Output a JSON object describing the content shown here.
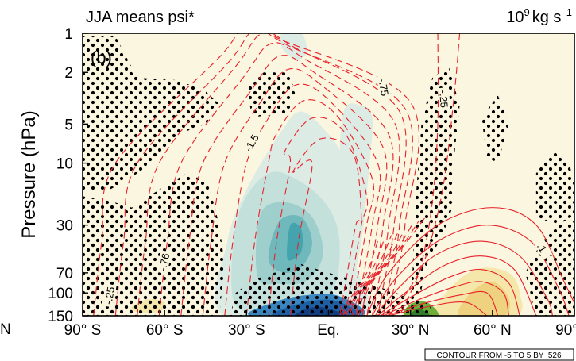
{
  "chart_data": {
    "type": "contour",
    "title_left": "JJA means psi*",
    "title_right_base": "10",
    "title_right_exp": "9",
    "title_right_unit": "kg s",
    "title_right_unit_exp": "-1",
    "panel_label": "(b)",
    "ylabel": "Pressure (hPa)",
    "y_scale": "log",
    "y_inverted": true,
    "ylim": [
      150,
      1
    ],
    "xlim": [
      -90,
      90
    ],
    "x_ticks": [
      {
        "value": -90,
        "label": "90° S"
      },
      {
        "value": -60,
        "label": "60° S"
      },
      {
        "value": -30,
        "label": "30° S"
      },
      {
        "value": 0,
        "label": "Eq."
      },
      {
        "value": 30,
        "label": "30° N"
      },
      {
        "value": 60,
        "label": "60° N"
      },
      {
        "value": 90,
        "label": "90° N"
      }
    ],
    "y_ticks": [
      {
        "value": 1,
        "label": "1"
      },
      {
        "value": 2,
        "label": "2"
      },
      {
        "value": 5,
        "label": "5"
      },
      {
        "value": 10,
        "label": "10"
      },
      {
        "value": 30,
        "label": "30"
      },
      {
        "value": 70,
        "label": "70"
      },
      {
        "value": 100,
        "label": "100"
      },
      {
        "value": 150,
        "label": "150"
      }
    ],
    "left_edge_label": "N",
    "contour_note": "CONTOUR FROM -5 TO 5 BY .526",
    "contour_labels": [
      {
        "text": "-.75",
        "lat": 20,
        "p": 2.6,
        "rot": 80
      },
      {
        "text": "-.25",
        "lat": 42,
        "p": 3.2,
        "rot": 85
      },
      {
        "text": "-1.5",
        "lat": -28,
        "p": 7.0,
        "rot": -60
      },
      {
        "text": "-.76",
        "lat": -60,
        "p": 58,
        "rot": -78
      },
      {
        "text": "-.25",
        "lat": -80,
        "p": 105,
        "rot": -80
      },
      {
        "text": ".1",
        "lat": 78,
        "p": 45,
        "rot": 60
      }
    ],
    "colors": {
      "background_fill": "#fbf6df",
      "negative_contour": "#e8202a",
      "positive_contour": "#e8202a",
      "shade_levels": [
        "#dcebe3",
        "#c4e0da",
        "#9fcfcc",
        "#6fb8bb",
        "#44a3ad"
      ],
      "positive_shade_levels": [
        "#f5e7a9",
        "#eed27f",
        "#cdd17a",
        "#6fae3a",
        "#2e7e2a"
      ],
      "deep_blue": [
        "#3a86c0",
        "#1f5fa3",
        "#123d7e"
      ],
      "stipple": "#000000"
    }
  }
}
